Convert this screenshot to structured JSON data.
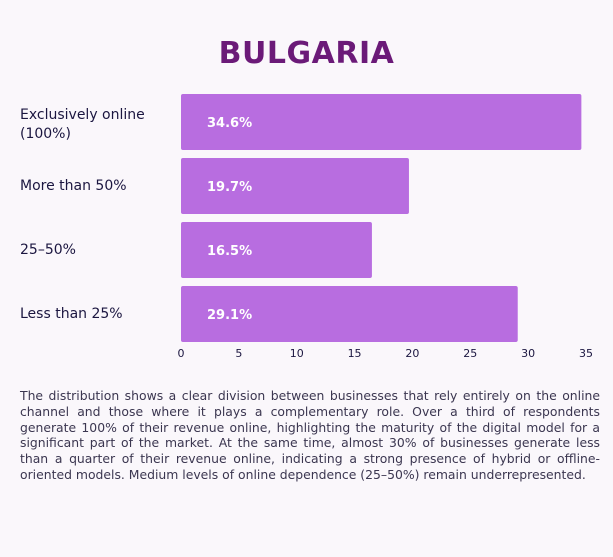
{
  "chart_data": {
    "type": "bar",
    "orientation": "horizontal",
    "title": "BULGARIA",
    "categories": [
      "Exclusively online (100%)",
      "More than 50%",
      "25–50%",
      "Less than 25%"
    ],
    "values": [
      34.6,
      19.7,
      16.5,
      29.1
    ],
    "value_labels": [
      "34.6%",
      "19.7%",
      "16.5%",
      "29.1%"
    ],
    "xticks": [
      0,
      5,
      10,
      15,
      20,
      25,
      30,
      35
    ],
    "xlim": [
      0,
      35
    ],
    "bar_color": "#b86de0",
    "grid": false,
    "legend": "none"
  },
  "description": "The distribution shows a clear division between businesses that rely entirely on the online channel and those where it plays a complementary role. Over a third of respondents generate 100% of their revenue online, highlighting the maturity of the digital model for a significant part of the market. At the same time, almost 30% of businesses generate less than a quarter of their revenue online, indicating a strong presence of hybrid or offline-oriented models. Medium levels of online dependence (25–50%) remain underrepresented."
}
